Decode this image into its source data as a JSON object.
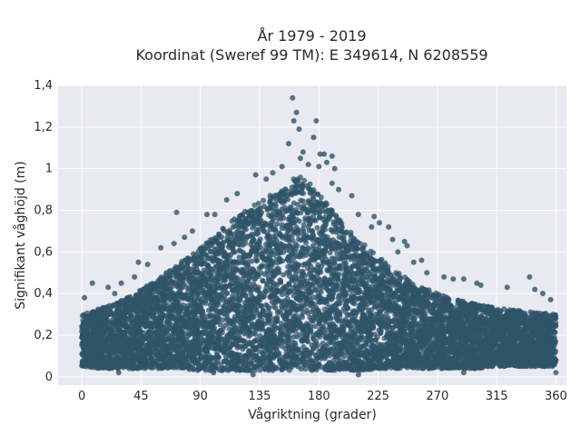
{
  "chart_data": {
    "type": "scatter",
    "title": "År 1979 - 2019",
    "subtitle": "Koordinat (Sweref 99 TM): E 349614, N 6208559",
    "xlabel": "Vågriktning (grader)",
    "ylabel": "Signifikant våghöjd (m)",
    "xlim": [
      -18,
      368
    ],
    "ylim": [
      -0.04,
      1.4
    ],
    "x_ticks": [
      0,
      45,
      90,
      135,
      180,
      225,
      270,
      315,
      360
    ],
    "x_tick_labels": [
      "0",
      "45",
      "90",
      "135",
      "180",
      "225",
      "270",
      "315",
      "360"
    ],
    "y_ticks": [
      0,
      0.2,
      0.4,
      0.6,
      0.8,
      1.0,
      1.2,
      1.4
    ],
    "y_tick_labels": [
      "0",
      "0,2",
      "0,4",
      "0,6",
      "0,8",
      "1",
      "1,2",
      "1,4"
    ],
    "grid": true,
    "colors": {
      "marker": "#2f5468",
      "plot_background": "#e8e9f1",
      "grid": "#ffffff"
    },
    "envelope": {
      "description_x": [
        0,
        15,
        30,
        45,
        60,
        75,
        90,
        105,
        120,
        135,
        150,
        160,
        165,
        170,
        180,
        195,
        210,
        225,
        240,
        255,
        270,
        285,
        300,
        315,
        330,
        345,
        360
      ],
      "upper": [
        0.3,
        0.33,
        0.37,
        0.42,
        0.48,
        0.55,
        0.62,
        0.7,
        0.78,
        0.84,
        0.9,
        0.95,
        0.97,
        0.95,
        0.88,
        0.76,
        0.66,
        0.58,
        0.5,
        0.44,
        0.4,
        0.37,
        0.35,
        0.33,
        0.32,
        0.31,
        0.3
      ],
      "lower": [
        0.05,
        0.04,
        0.04,
        0.04,
        0.04,
        0.04,
        0.03,
        0.03,
        0.03,
        0.03,
        0.03,
        0.03,
        0.03,
        0.03,
        0.03,
        0.03,
        0.03,
        0.04,
        0.04,
        0.04,
        0.04,
        0.04,
        0.04,
        0.05,
        0.05,
        0.05,
        0.05
      ]
    },
    "outliers": [
      {
        "x": 160,
        "y": 1.34
      },
      {
        "x": 163,
        "y": 1.27
      },
      {
        "x": 161,
        "y": 1.23
      },
      {
        "x": 178,
        "y": 1.23
      },
      {
        "x": 165,
        "y": 1.19
      },
      {
        "x": 157,
        "y": 1.12
      },
      {
        "x": 176,
        "y": 1.15
      },
      {
        "x": 181,
        "y": 1.07
      },
      {
        "x": 184,
        "y": 1.07
      },
      {
        "x": 190,
        "y": 1.06
      },
      {
        "x": 186,
        "y": 1.03
      },
      {
        "x": 180,
        "y": 1.01
      },
      {
        "x": 192,
        "y": 1.0
      },
      {
        "x": 172,
        "y": 1.02
      },
      {
        "x": 166,
        "y": 1.05
      },
      {
        "x": 168,
        "y": 1.08
      },
      {
        "x": 152,
        "y": 1.01
      },
      {
        "x": 145,
        "y": 0.98
      },
      {
        "x": 140,
        "y": 0.95
      },
      {
        "x": 132,
        "y": 0.97
      },
      {
        "x": 190,
        "y": 0.93
      },
      {
        "x": 195,
        "y": 0.9
      },
      {
        "x": 205,
        "y": 0.87
      },
      {
        "x": 210,
        "y": 0.78
      },
      {
        "x": 222,
        "y": 0.77
      },
      {
        "x": 220,
        "y": 0.72
      },
      {
        "x": 226,
        "y": 0.74
      },
      {
        "x": 233,
        "y": 0.72
      },
      {
        "x": 236,
        "y": 0.66
      },
      {
        "x": 245,
        "y": 0.65
      },
      {
        "x": 247,
        "y": 0.63
      },
      {
        "x": 240,
        "y": 0.6
      },
      {
        "x": 258,
        "y": 0.56
      },
      {
        "x": 252,
        "y": 0.55
      },
      {
        "x": 262,
        "y": 0.5
      },
      {
        "x": 275,
        "y": 0.48
      },
      {
        "x": 282,
        "y": 0.47
      },
      {
        "x": 290,
        "y": 0.47
      },
      {
        "x": 300,
        "y": 0.45
      },
      {
        "x": 303,
        "y": 0.44
      },
      {
        "x": 340,
        "y": 0.48
      },
      {
        "x": 323,
        "y": 0.43
      },
      {
        "x": 344,
        "y": 0.42
      },
      {
        "x": 350,
        "y": 0.4
      },
      {
        "x": 356,
        "y": 0.37
      },
      {
        "x": 118,
        "y": 0.88
      },
      {
        "x": 110,
        "y": 0.85
      },
      {
        "x": 101,
        "y": 0.78
      },
      {
        "x": 95,
        "y": 0.78
      },
      {
        "x": 84,
        "y": 0.7
      },
      {
        "x": 78,
        "y": 0.67
      },
      {
        "x": 72,
        "y": 0.79
      },
      {
        "x": 60,
        "y": 0.62
      },
      {
        "x": 70,
        "y": 0.64
      },
      {
        "x": 50,
        "y": 0.54
      },
      {
        "x": 43,
        "y": 0.55
      },
      {
        "x": 40,
        "y": 0.48
      },
      {
        "x": 30,
        "y": 0.45
      },
      {
        "x": 8,
        "y": 0.45
      },
      {
        "x": 2,
        "y": 0.38
      },
      {
        "x": 20,
        "y": 0.43
      },
      {
        "x": 25,
        "y": 0.4
      },
      {
        "x": 100,
        "y": 0.02
      },
      {
        "x": 130,
        "y": 0.01
      },
      {
        "x": 210,
        "y": 0.01
      },
      {
        "x": 360,
        "y": 0.02
      },
      {
        "x": 28,
        "y": 0.02
      },
      {
        "x": 290,
        "y": 0.02
      }
    ]
  }
}
